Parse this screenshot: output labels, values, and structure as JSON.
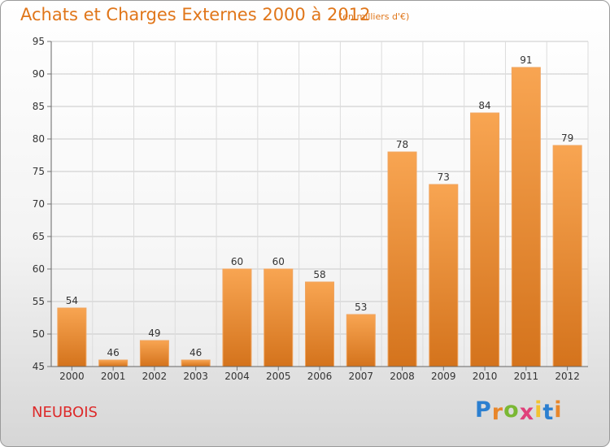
{
  "chart_data": {
    "type": "bar",
    "title": "Achats et Charges Externes 2000 à 2012",
    "subtitle": "(en milliers d'€)",
    "categories": [
      "2000",
      "2001",
      "2002",
      "2003",
      "2004",
      "2005",
      "2006",
      "2007",
      "2008",
      "2009",
      "2010",
      "2011",
      "2012"
    ],
    "values": [
      54,
      46,
      49,
      46,
      60,
      60,
      58,
      53,
      78,
      73,
      84,
      91,
      79
    ],
    "ylim": [
      45,
      95
    ],
    "yticks": [
      45,
      50,
      55,
      60,
      65,
      70,
      75,
      80,
      85,
      90,
      95
    ],
    "grid": true,
    "bar_color": "#e8862a",
    "bar_color_light": "#f8a552",
    "title_color": "#e0761a"
  },
  "footer": {
    "commune": "NEUBOIS",
    "commune_color": "#dd2a2a",
    "brand": "Proxiti",
    "brand_colors": [
      "#2b7fd0",
      "#e8862a",
      "#7ab834",
      "#e0407a",
      "#f2c230",
      "#2b7fd0",
      "#e8862a"
    ]
  }
}
